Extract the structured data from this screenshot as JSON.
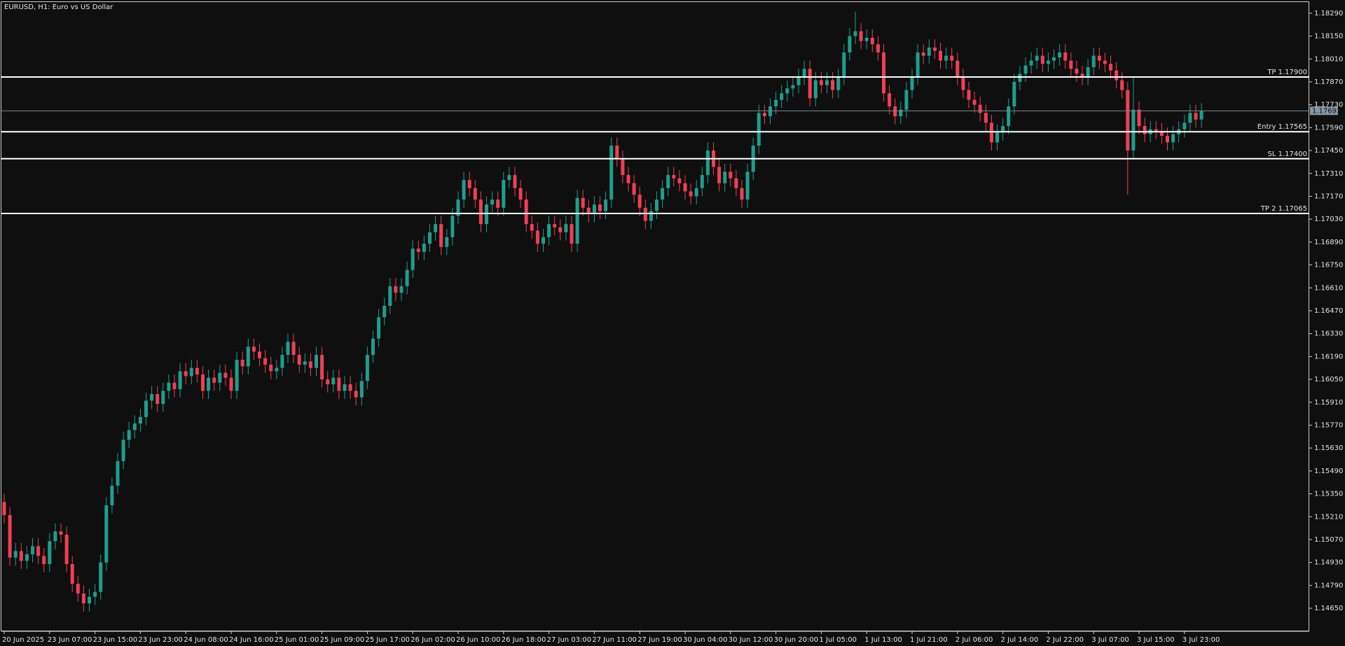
{
  "chart_data": {
    "type": "candlestick",
    "title": "EURUSD, H1:  Euro vs US Dollar",
    "up_color": "#1f9e8c",
    "down_color": "#ef3f57",
    "categories": [
      "20 Jun 2025",
      null,
      null,
      null,
      null,
      null,
      null,
      null,
      "23 Jun 07:00",
      null,
      null,
      null,
      null,
      null,
      null,
      null,
      "23 Jun 15:00",
      null,
      null,
      null,
      null,
      null,
      null,
      null,
      "23 Jun 23:00",
      null,
      null,
      null,
      null,
      null,
      null,
      null,
      "24 Jun 08:00",
      null,
      null,
      null,
      null,
      null,
      null,
      null,
      "24 Jun 16:00",
      null,
      null,
      null,
      null,
      null,
      null,
      null,
      "25 Jun 01:00",
      null,
      null,
      null,
      null,
      null,
      null,
      null,
      "25 Jun 09:00",
      null,
      null,
      null,
      null,
      null,
      null,
      null,
      "25 Jun 17:00",
      null,
      null,
      null,
      null,
      null,
      null,
      null,
      "26 Jun 02:00",
      null,
      null,
      null,
      null,
      null,
      null,
      null,
      "26 Jun 10:00",
      null,
      null,
      null,
      null,
      null,
      null,
      null,
      "26 Jun 18:00",
      null,
      null,
      null,
      null,
      null,
      null,
      null,
      "27 Jun 03:00",
      null,
      null,
      null,
      null,
      null,
      null,
      null,
      "27 Jun 11:00",
      null,
      null,
      null,
      null,
      null,
      null,
      null,
      "27 Jun 19:00",
      null,
      null,
      null,
      null,
      null,
      null,
      null,
      "30 Jun 04:00",
      null,
      null,
      null,
      null,
      null,
      null,
      null,
      "30 Jun 12:00",
      null,
      null,
      null,
      null,
      null,
      null,
      null,
      "30 Jun 20:00",
      null,
      null,
      null,
      null,
      null,
      null,
      null,
      "1 Jul 05:00",
      null,
      null,
      null,
      null,
      null,
      null,
      null,
      "1 Jul 13:00",
      null,
      null,
      null,
      null,
      null,
      null,
      null,
      "1 Jul 21:00",
      null,
      null,
      null,
      null,
      null,
      null,
      null,
      "2 Jul 06:00",
      null,
      null,
      null,
      null,
      null,
      null,
      null,
      "2 Jul 14:00",
      null,
      null,
      null,
      null,
      null,
      null,
      null,
      "2 Jul 22:00",
      null,
      null,
      null,
      null,
      null,
      null,
      null,
      "3 Jul 07:00",
      null,
      null,
      null,
      null,
      null,
      null,
      null,
      "3 Jul 15:00",
      null,
      null,
      null,
      null,
      null,
      null,
      null,
      "3 Jul 23:00",
      null,
      null,
      null
    ],
    "open": [
      1.153,
      1.1522,
      1.1496,
      1.15,
      1.1494,
      1.1498,
      1.1503,
      1.1497,
      1.1492,
      1.1506,
      1.1512,
      1.151,
      1.1492,
      1.148,
      1.1474,
      1.1468,
      1.1472,
      1.1475,
      1.1493,
      1.1528,
      1.154,
      1.1555,
      1.1568,
      1.1574,
      1.1578,
      1.1582,
      1.1592,
      1.1596,
      1.159,
      1.1598,
      1.1603,
      1.1599,
      1.161,
      1.1607,
      1.1612,
      1.1608,
      1.1598,
      1.1606,
      1.1603,
      1.1609,
      1.1606,
      1.1598,
      1.1617,
      1.1613,
      1.1625,
      1.1622,
      1.1618,
      1.1614,
      1.161,
      1.1612,
      1.162,
      1.1628,
      1.162,
      1.1614,
      1.1616,
      1.1612,
      1.162,
      1.1605,
      1.1602,
      1.1606,
      1.1598,
      1.1602,
      1.1598,
      1.1594,
      1.1604,
      1.162,
      1.163,
      1.1643,
      1.165,
      1.1662,
      1.1658,
      1.1662,
      1.1672,
      1.1685,
      1.1683,
      1.1688,
      1.1695,
      1.17,
      1.1686,
      1.1692,
      1.1705,
      1.1715,
      1.1727,
      1.1722,
      1.1715,
      1.17,
      1.1712,
      1.1715,
      1.171,
      1.1727,
      1.173,
      1.1722,
      1.1715,
      1.17,
      1.1696,
      1.1688,
      1.1692,
      1.17,
      1.1698,
      1.1695,
      1.17,
      1.1688,
      1.1716,
      1.171,
      1.1706,
      1.1712,
      1.1708,
      1.1715,
      1.1748,
      1.174,
      1.173,
      1.1725,
      1.1718,
      1.171,
      1.1702,
      1.1708,
      1.1715,
      1.1722,
      1.173,
      1.1728,
      1.1725,
      1.172,
      1.1717,
      1.1722,
      1.173,
      1.1745,
      1.1735,
      1.1725,
      1.1732,
      1.1728,
      1.1722,
      1.1715,
      1.1732,
      1.1748,
      1.1768,
      1.1766,
      1.1772,
      1.1776,
      1.178,
      1.1783,
      1.1785,
      1.179,
      1.1795,
      1.1777,
      1.1788,
      1.1785,
      1.1788,
      1.1782,
      1.179,
      1.1805,
      1.1815,
      1.1818,
      1.1812,
      1.1814,
      1.181,
      1.1805,
      1.178,
      1.1772,
      1.1766,
      1.177,
      1.1782,
      1.179,
      1.1805,
      1.1803,
      1.1808,
      1.1806,
      1.18,
      1.1803,
      1.18,
      1.179,
      1.1782,
      1.1776,
      1.1773,
      1.1768,
      1.1762,
      1.175,
      1.1756,
      1.176,
      1.1772,
      1.1787,
      1.1792,
      1.1797,
      1.18,
      1.1803,
      1.1798,
      1.18,
      1.1802,
      1.1805,
      1.18,
      1.1795,
      1.1792,
      1.179,
      1.1796,
      1.1803,
      1.18,
      1.1798,
      1.1794,
      1.1788,
      1.1782,
      1.1745,
      1.177,
      1.176,
      1.1755,
      1.1758,
      1.1757,
      1.1754,
      1.175,
      1.1755,
      1.1758,
      1.1762,
      1.1768,
      1.1764
    ],
    "high": [
      1.1535,
      1.1527,
      1.1505,
      1.1505,
      1.1503,
      1.1508,
      1.1508,
      1.1502,
      1.1511,
      1.1517,
      1.1517,
      1.1515,
      1.1497,
      1.1485,
      1.1479,
      1.1477,
      1.148,
      1.1498,
      1.1533,
      1.1545,
      1.156,
      1.1573,
      1.1579,
      1.1583,
      1.1587,
      1.1597,
      1.1601,
      1.1601,
      1.1603,
      1.1608,
      1.1608,
      1.1615,
      1.1615,
      1.1617,
      1.1617,
      1.1613,
      1.1611,
      1.1611,
      1.1614,
      1.1614,
      1.1611,
      1.1622,
      1.1622,
      1.163,
      1.163,
      1.1627,
      1.1623,
      1.1619,
      1.1617,
      1.1625,
      1.1633,
      1.1633,
      1.1625,
      1.1621,
      1.1621,
      1.1625,
      1.1625,
      1.161,
      1.1611,
      1.1611,
      1.1607,
      1.1607,
      1.1603,
      1.1609,
      1.1625,
      1.1635,
      1.1648,
      1.1655,
      1.1667,
      1.1667,
      1.1667,
      1.1677,
      1.169,
      1.169,
      1.1693,
      1.17,
      1.1705,
      1.1705,
      1.1697,
      1.171,
      1.172,
      1.1732,
      1.1732,
      1.1727,
      1.172,
      1.1717,
      1.172,
      1.172,
      1.1732,
      1.1735,
      1.1735,
      1.1727,
      1.172,
      1.1705,
      1.1701,
      1.1697,
      1.1705,
      1.1705,
      1.1703,
      1.1705,
      1.1705,
      1.1721,
      1.1721,
      1.1715,
      1.1717,
      1.1717,
      1.172,
      1.1753,
      1.1753,
      1.1745,
      1.1735,
      1.173,
      1.1723,
      1.1715,
      1.1713,
      1.172,
      1.1727,
      1.1735,
      1.1735,
      1.1733,
      1.173,
      1.1725,
      1.1727,
      1.1735,
      1.175,
      1.175,
      1.174,
      1.1737,
      1.1737,
      1.1733,
      1.1727,
      1.1737,
      1.1753,
      1.1773,
      1.1773,
      1.1777,
      1.1781,
      1.1785,
      1.1788,
      1.179,
      1.1795,
      1.18,
      1.18,
      1.1793,
      1.1793,
      1.1793,
      1.1793,
      1.1795,
      1.181,
      1.182,
      1.183,
      1.1823,
      1.1819,
      1.1819,
      1.1815,
      1.181,
      1.1785,
      1.1777,
      1.1775,
      1.1787,
      1.1795,
      1.181,
      1.181,
      1.1813,
      1.1813,
      1.1811,
      1.1808,
      1.1808,
      1.1805,
      1.1795,
      1.1787,
      1.1781,
      1.1778,
      1.1773,
      1.1767,
      1.1761,
      1.1765,
      1.1777,
      1.1792,
      1.1797,
      1.1802,
      1.1805,
      1.1808,
      1.1808,
      1.1805,
      1.1807,
      1.181,
      1.181,
      1.1805,
      1.18,
      1.1797,
      1.1801,
      1.1808,
      1.1808,
      1.1805,
      1.1803,
      1.1799,
      1.1793,
      1.1787,
      1.179,
      1.1775,
      1.1765,
      1.1763,
      1.1763,
      1.1762,
      1.1759,
      1.176,
      1.1763,
      1.1767,
      1.1773,
      1.1773,
      1.1774
    ],
    "low": [
      1.1517,
      1.1491,
      1.1491,
      1.1489,
      1.1489,
      1.1493,
      1.1492,
      1.1487,
      1.1487,
      1.1501,
      1.1505,
      1.1487,
      1.1475,
      1.1469,
      1.1463,
      1.1463,
      1.1467,
      1.147,
      1.1488,
      1.1523,
      1.1535,
      1.155,
      1.1563,
      1.1569,
      1.1573,
      1.1577,
      1.1587,
      1.1585,
      1.1585,
      1.1593,
      1.1594,
      1.1594,
      1.1602,
      1.1602,
      1.1603,
      1.1593,
      1.1593,
      1.1598,
      1.1598,
      1.1601,
      1.1593,
      1.1593,
      1.1608,
      1.1608,
      1.1617,
      1.1613,
      1.1609,
      1.1605,
      1.1605,
      1.1607,
      1.1615,
      1.1615,
      1.1609,
      1.1609,
      1.1607,
      1.1607,
      1.16,
      1.1597,
      1.1597,
      1.1593,
      1.1593,
      1.1593,
      1.1589,
      1.1589,
      1.1599,
      1.1615,
      1.1625,
      1.1638,
      1.1645,
      1.1653,
      1.1653,
      1.1657,
      1.1667,
      1.1678,
      1.1678,
      1.1683,
      1.169,
      1.1681,
      1.1681,
      1.1687,
      1.17,
      1.171,
      1.1717,
      1.171,
      1.1695,
      1.1695,
      1.1707,
      1.1705,
      1.1705,
      1.1722,
      1.1717,
      1.171,
      1.1695,
      1.1691,
      1.1683,
      1.1683,
      1.1687,
      1.1693,
      1.169,
      1.169,
      1.1683,
      1.1683,
      1.1705,
      1.1701,
      1.1701,
      1.1703,
      1.1703,
      1.171,
      1.1735,
      1.1725,
      1.172,
      1.1713,
      1.1705,
      1.1697,
      1.1697,
      1.1703,
      1.171,
      1.1717,
      1.1723,
      1.172,
      1.1715,
      1.1712,
      1.1712,
      1.1717,
      1.1725,
      1.173,
      1.172,
      1.172,
      1.1723,
      1.1717,
      1.171,
      1.171,
      1.1727,
      1.1743,
      1.1761,
      1.1761,
      1.1767,
      1.1771,
      1.1775,
      1.1778,
      1.178,
      1.1785,
      1.1772,
      1.1772,
      1.178,
      1.178,
      1.1777,
      1.1777,
      1.1785,
      1.18,
      1.181,
      1.1807,
      1.1807,
      1.1805,
      1.18,
      1.1775,
      1.1767,
      1.1761,
      1.1761,
      1.1765,
      1.1777,
      1.1785,
      1.1798,
      1.1798,
      1.1801,
      1.1795,
      1.1795,
      1.1795,
      1.1785,
      1.1777,
      1.1771,
      1.1768,
      1.1763,
      1.1757,
      1.1745,
      1.1745,
      1.1751,
      1.1755,
      1.1767,
      1.1782,
      1.1787,
      1.1792,
      1.1795,
      1.1793,
      1.1793,
      1.1795,
      1.1797,
      1.1795,
      1.179,
      1.1787,
      1.1785,
      1.1785,
      1.1791,
      1.1795,
      1.1793,
      1.1789,
      1.1783,
      1.1777,
      1.1718,
      1.174,
      1.1755,
      1.175,
      1.175,
      1.1752,
      1.1749,
      1.1745,
      1.1745,
      1.175,
      1.1753,
      1.1757,
      1.1759,
      1.1759
    ],
    "close": [
      1.1522,
      1.1496,
      1.15,
      1.1494,
      1.1498,
      1.1503,
      1.1497,
      1.1492,
      1.1506,
      1.1512,
      1.151,
      1.1492,
      1.148,
      1.1474,
      1.1468,
      1.1472,
      1.1475,
      1.1493,
      1.1528,
      1.154,
      1.1555,
      1.1568,
      1.1574,
      1.1578,
      1.1582,
      1.1592,
      1.1596,
      1.159,
      1.1598,
      1.1603,
      1.1599,
      1.161,
      1.1607,
      1.1612,
      1.1608,
      1.1598,
      1.1606,
      1.1603,
      1.1609,
      1.1606,
      1.1598,
      1.1617,
      1.1613,
      1.1625,
      1.1622,
      1.1618,
      1.1614,
      1.161,
      1.1612,
      1.162,
      1.1628,
      1.162,
      1.1614,
      1.1616,
      1.1612,
      1.162,
      1.1605,
      1.1602,
      1.1606,
      1.1598,
      1.1602,
      1.1598,
      1.1594,
      1.1604,
      1.162,
      1.163,
      1.1643,
      1.165,
      1.1662,
      1.1658,
      1.1662,
      1.1672,
      1.1685,
      1.1683,
      1.1688,
      1.1695,
      1.17,
      1.1686,
      1.1692,
      1.1705,
      1.1715,
      1.1727,
      1.1722,
      1.1715,
      1.17,
      1.1712,
      1.1715,
      1.171,
      1.1727,
      1.173,
      1.1722,
      1.1715,
      1.17,
      1.1696,
      1.1688,
      1.1692,
      1.17,
      1.1698,
      1.1695,
      1.17,
      1.1688,
      1.1716,
      1.171,
      1.1706,
      1.1712,
      1.1708,
      1.1715,
      1.1748,
      1.174,
      1.173,
      1.1725,
      1.1718,
      1.171,
      1.1702,
      1.1708,
      1.1715,
      1.1722,
      1.173,
      1.1728,
      1.1725,
      1.172,
      1.1717,
      1.1722,
      1.173,
      1.1745,
      1.1735,
      1.1725,
      1.1732,
      1.1728,
      1.1722,
      1.1715,
      1.1732,
      1.1748,
      1.1768,
      1.1766,
      1.1772,
      1.1776,
      1.178,
      1.1783,
      1.1785,
      1.179,
      1.1795,
      1.1777,
      1.1788,
      1.1785,
      1.1788,
      1.1782,
      1.179,
      1.1805,
      1.1815,
      1.1818,
      1.1812,
      1.1814,
      1.181,
      1.1805,
      1.178,
      1.1772,
      1.1766,
      1.177,
      1.1782,
      1.179,
      1.1805,
      1.1803,
      1.1808,
      1.1806,
      1.18,
      1.1803,
      1.18,
      1.179,
      1.1782,
      1.1776,
      1.1773,
      1.1768,
      1.1762,
      1.175,
      1.1756,
      1.176,
      1.1772,
      1.1787,
      1.1792,
      1.1797,
      1.18,
      1.1803,
      1.1798,
      1.18,
      1.1802,
      1.1805,
      1.18,
      1.1795,
      1.1792,
      1.179,
      1.1796,
      1.1803,
      1.18,
      1.1798,
      1.1794,
      1.1788,
      1.1782,
      1.1745,
      1.177,
      1.176,
      1.1755,
      1.1758,
      1.1757,
      1.1754,
      1.175,
      1.1755,
      1.1758,
      1.1762,
      1.1768,
      1.1764,
      1.1769
    ],
    "ylim": [
      1.14509,
      1.18358
    ],
    "yticks": [
      {
        "value": 1.1829,
        "label": "1.18290"
      },
      {
        "value": 1.1815,
        "label": "1.18150"
      },
      {
        "value": 1.1801,
        "label": "1.18010"
      },
      {
        "value": 1.1787,
        "label": "1.17870"
      },
      {
        "value": 1.1773,
        "label": "1.17730"
      },
      {
        "value": 1.1759,
        "label": "1.17590"
      },
      {
        "value": 1.1745,
        "label": "1.17450"
      },
      {
        "value": 1.1731,
        "label": "1.17310"
      },
      {
        "value": 1.1717,
        "label": "1.17170"
      },
      {
        "value": 1.1703,
        "label": "1.17030"
      },
      {
        "value": 1.1689,
        "label": "1.16890"
      },
      {
        "value": 1.1675,
        "label": "1.16750"
      },
      {
        "value": 1.1661,
        "label": "1.16610"
      },
      {
        "value": 1.1647,
        "label": "1.16470"
      },
      {
        "value": 1.1633,
        "label": "1.16330"
      },
      {
        "value": 1.1619,
        "label": "1.16190"
      },
      {
        "value": 1.1605,
        "label": "1.16050"
      },
      {
        "value": 1.1591,
        "label": "1.15910"
      },
      {
        "value": 1.1577,
        "label": "1.15770"
      },
      {
        "value": 1.1563,
        "label": "1.15630"
      },
      {
        "value": 1.1549,
        "label": "1.15490"
      },
      {
        "value": 1.1535,
        "label": "1.15350"
      },
      {
        "value": 1.1521,
        "label": "1.15210"
      },
      {
        "value": 1.1507,
        "label": "1.15070"
      },
      {
        "value": 1.1493,
        "label": "1.14930"
      },
      {
        "value": 1.1479,
        "label": "1.14790"
      },
      {
        "value": 1.1465,
        "label": "1.14650"
      }
    ],
    "levels": [
      {
        "label": "TP 1.17900",
        "value": 1.179
      },
      {
        "label": "Entry 1.17565",
        "value": 1.17565
      },
      {
        "label": "SL 1.17400",
        "value": 1.174
      },
      {
        "label": "TP 2 1.17065",
        "value": 1.17065
      }
    ],
    "current_price": {
      "value": 1.17693,
      "label": "1.17693"
    }
  }
}
